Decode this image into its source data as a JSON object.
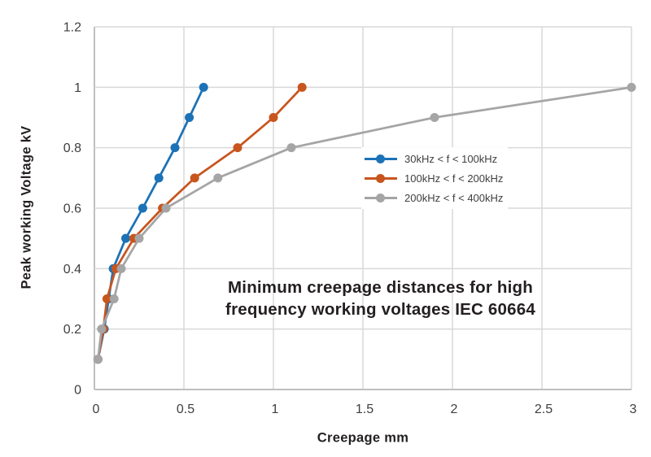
{
  "chart_data": {
    "type": "line",
    "title": "Minimum creepage distances for high frequency working voltages IEC 60664",
    "title_lines": [
      "Minimum creepage distances for high",
      "frequency working voltages IEC 60664"
    ],
    "xlabel": "Creepage mm",
    "ylabel": "Peak working Voltage kV",
    "xlim": [
      0,
      3
    ],
    "ylim": [
      0,
      1.2
    ],
    "x_ticks": [
      0,
      0.5,
      1,
      1.5,
      2,
      2.5,
      3
    ],
    "x_tick_labels": [
      "0",
      "0.5",
      "1",
      "1.5",
      "2",
      "2.5",
      "3"
    ],
    "y_ticks": [
      0,
      0.2,
      0.4,
      0.6,
      0.8,
      1,
      1.2
    ],
    "y_tick_labels": [
      "0",
      "0.2",
      "0.4",
      "0.6",
      "0.8",
      "1",
      "1.2"
    ],
    "grid": true,
    "legend_position": "inside-right-middle",
    "series": [
      {
        "name": "30kHz < f < 100kHz",
        "color": "#1C72B6",
        "points": [
          [
            0.02,
            0.1
          ],
          [
            0.055,
            0.2
          ],
          [
            0.08,
            0.3
          ],
          [
            0.105,
            0.4
          ],
          [
            0.175,
            0.5
          ],
          [
            0.27,
            0.6
          ],
          [
            0.36,
            0.7
          ],
          [
            0.45,
            0.8
          ],
          [
            0.53,
            0.9
          ],
          [
            0.61,
            1.0
          ]
        ]
      },
      {
        "name": "100kHz < f < 200kHz",
        "color": "#C8551E",
        "points": [
          [
            0.02,
            0.1
          ],
          [
            0.05,
            0.2
          ],
          [
            0.07,
            0.3
          ],
          [
            0.12,
            0.4
          ],
          [
            0.22,
            0.5
          ],
          [
            0.38,
            0.6
          ],
          [
            0.56,
            0.7
          ],
          [
            0.8,
            0.8
          ],
          [
            1.0,
            0.9
          ],
          [
            1.16,
            1.0
          ]
        ]
      },
      {
        "name": "200kHz < f < 400kHz",
        "color": "#A5A5A5",
        "points": [
          [
            0.02,
            0.1
          ],
          [
            0.04,
            0.2
          ],
          [
            0.11,
            0.3
          ],
          [
            0.15,
            0.4
          ],
          [
            0.25,
            0.5
          ],
          [
            0.4,
            0.6
          ],
          [
            0.69,
            0.7
          ],
          [
            1.1,
            0.8
          ],
          [
            1.9,
            0.9
          ],
          [
            3.0,
            1.0
          ]
        ]
      }
    ],
    "colors": {
      "grid": "#D9D9D9",
      "axis": "#BFBFBF",
      "title_text": "#231F20",
      "tick_text": "#3F3F3F",
      "legend_text": "#3F3F3F",
      "background": "#FFFFFF"
    }
  }
}
